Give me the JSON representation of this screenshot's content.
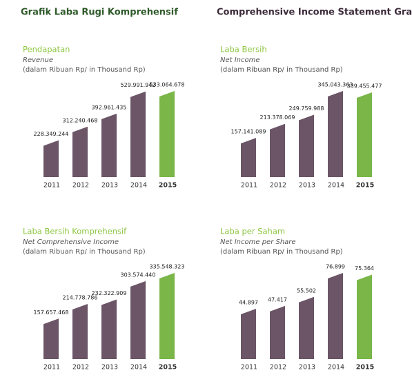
{
  "header": {
    "left_title": "Grafik Laba Rugi Komprehensif",
    "right_title": "Comprehensive Income Statement Graph"
  },
  "chart_data": [
    {
      "type": "bar",
      "title": "Pendapatan",
      "subtitle": "Revenue",
      "unit_note": "(dalam Ribuan Rp/ in Thousand Rp)",
      "categories": [
        "2011",
        "2012",
        "2013",
        "2014",
        "2015"
      ],
      "values": [
        228349244,
        312240468,
        392961435,
        529991942,
        533064678
      ],
      "value_labels": [
        "228.349.244",
        "312.240.468",
        "392.961.435",
        "529.991.942",
        "533.064.678"
      ],
      "colors": [
        "#6b5566",
        "#6b5566",
        "#6b5566",
        "#6b5566",
        "#7ab648"
      ]
    },
    {
      "type": "bar",
      "title": "Laba Bersih",
      "subtitle": "Net Income",
      "unit_note": "(dalam Ribuan Rp/ in Thousand Rp)",
      "categories": [
        "2011",
        "2012",
        "2013",
        "2014",
        "2015"
      ],
      "values": [
        157141089,
        213378069,
        249759988,
        345043363,
        339455477
      ],
      "value_labels": [
        "157.141.089",
        "213.378.069",
        "249.759.988",
        "345.043.363",
        "339.455.477"
      ],
      "colors": [
        "#6b5566",
        "#6b5566",
        "#6b5566",
        "#6b5566",
        "#7ab648"
      ]
    },
    {
      "type": "bar",
      "title": "Laba Bersih Komprehensif",
      "subtitle": "Net Comprehensive Income",
      "unit_note": "(dalam Ribuan Rp/ in Thousand Rp)",
      "categories": [
        "2011",
        "2012",
        "2013",
        "2014",
        "2015"
      ],
      "values": [
        157657468,
        214778786,
        232322909,
        303574440,
        335548323
      ],
      "value_labels": [
        "157.657.468",
        "214.778.786",
        "232.322.909",
        "303.574.440",
        "335.548.323"
      ],
      "colors": [
        "#6b5566",
        "#6b5566",
        "#6b5566",
        "#6b5566",
        "#7ab648"
      ]
    },
    {
      "type": "bar",
      "title": "Laba per Saham",
      "subtitle": "Net Income per Share",
      "unit_note": "(dalam Ribuan Rp/ in Thousand Rp)",
      "categories": [
        "2011",
        "2012",
        "2013",
        "2014",
        "2015"
      ],
      "values": [
        44.897,
        47.417,
        55.502,
        76.899,
        75.364
      ],
      "colors": [
        "#6b5566",
        "#6b5566",
        "#6b5566",
        "#6b5566",
        "#7ab648"
      ]
    }
  ]
}
